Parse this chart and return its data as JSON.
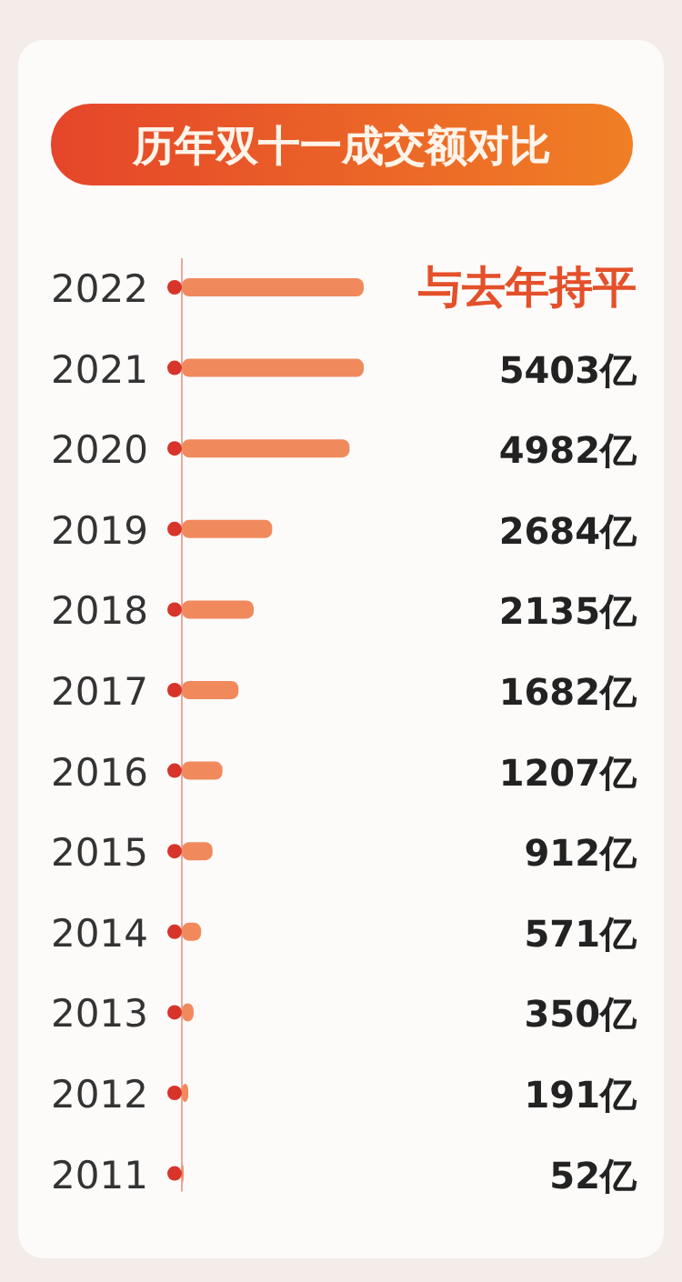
{
  "chart_data": {
    "type": "bar",
    "orientation": "horizontal",
    "title": "历年双十一成交额对比",
    "categories": [
      "2022",
      "2021",
      "2020",
      "2019",
      "2018",
      "2017",
      "2016",
      "2015",
      "2014",
      "2013",
      "2012",
      "2011"
    ],
    "values": [
      5403,
      5403,
      4982,
      2684,
      2135,
      1682,
      1207,
      912,
      571,
      350,
      191,
      52
    ],
    "value_labels": [
      "与去年持平",
      "5403亿",
      "4982亿",
      "2684亿",
      "2135亿",
      "1682亿",
      "1207亿",
      "912亿",
      "571亿",
      "350亿",
      "191亿",
      "52亿"
    ],
    "color": "#f08a5d"
  }
}
